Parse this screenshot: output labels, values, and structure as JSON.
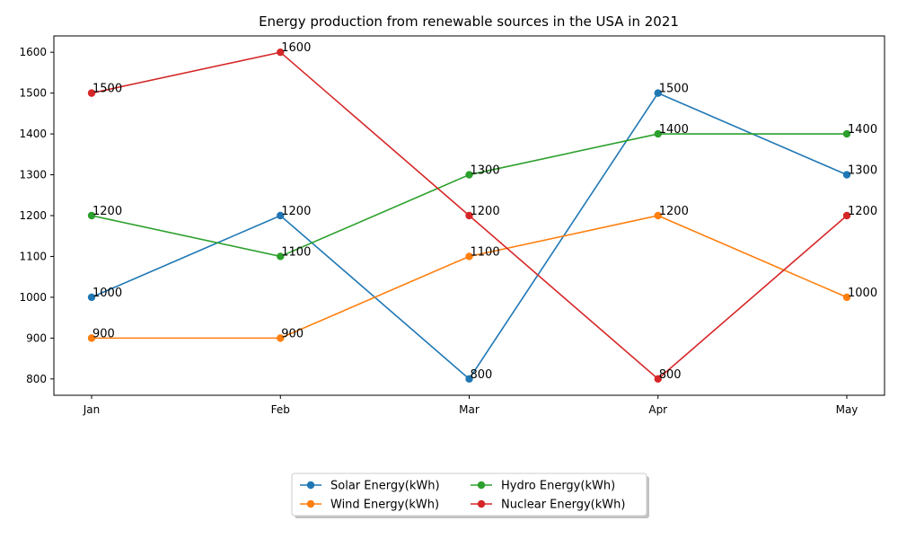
{
  "chart_data": {
    "type": "line",
    "title": "Energy production from renewable sources in the USA in 2021",
    "xlabel": "",
    "ylabel": "",
    "categories": [
      "Jan",
      "Feb",
      "Mar",
      "Apr",
      "May"
    ],
    "y_ticks": [
      800,
      900,
      1000,
      1100,
      1200,
      1300,
      1400,
      1500,
      1600
    ],
    "ylim": [
      760,
      1640
    ],
    "grid": false,
    "legend_position": "bottom-center",
    "series": [
      {
        "name": "Solar Energy(kWh)",
        "color": "#1f77b4",
        "values": [
          1000,
          1200,
          800,
          1500,
          1300
        ]
      },
      {
        "name": "Wind Energy(kWh)",
        "color": "#ff7f0e",
        "values": [
          900,
          900,
          1100,
          1200,
          1000
        ]
      },
      {
        "name": "Hydro Energy(kWh)",
        "color": "#2ca02c",
        "values": [
          1200,
          1100,
          1300,
          1400,
          1400
        ]
      },
      {
        "name": "Nuclear Energy(kWh)",
        "color": "#d62728",
        "values": [
          1500,
          1600,
          1200,
          800,
          1200
        ]
      }
    ]
  }
}
